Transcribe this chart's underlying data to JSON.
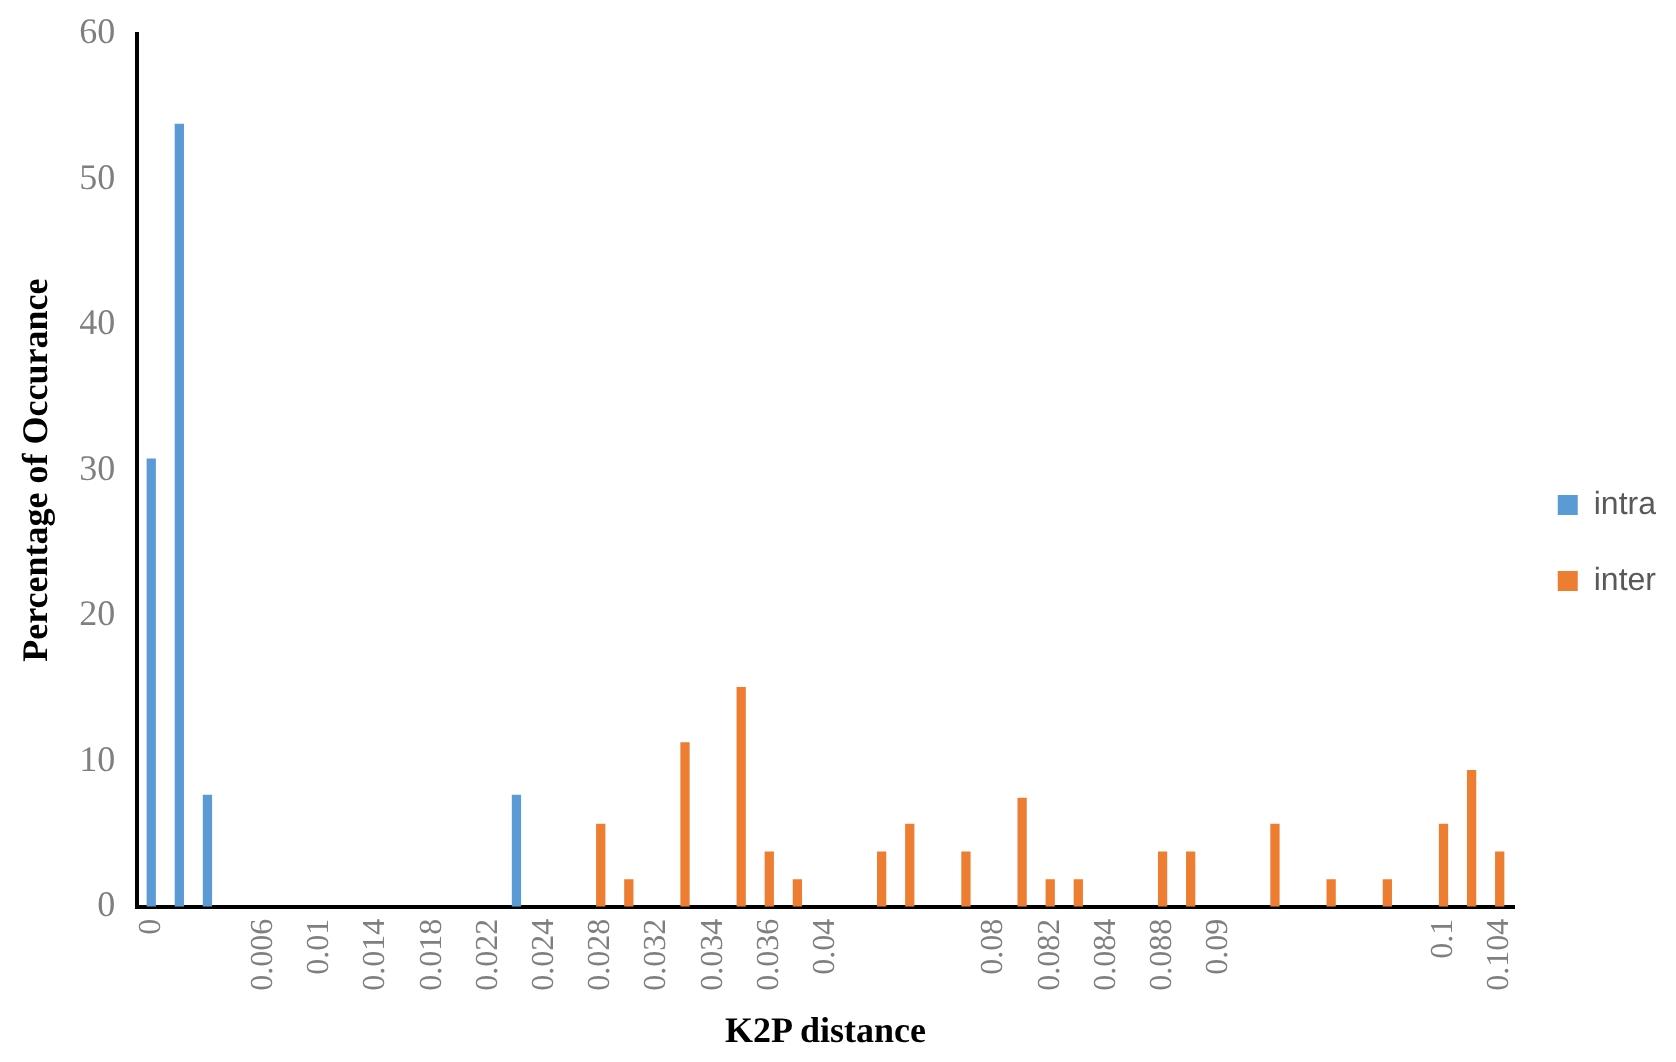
{
  "chart_data": {
    "type": "bar",
    "xlabel": "K2P distance",
    "ylabel": "Percentage of Occurance",
    "categories": [
      "0",
      null,
      null,
      null,
      "0.006",
      null,
      "0.01",
      null,
      "0.014",
      null,
      "0.018",
      null,
      "0.022",
      null,
      "0.024",
      null,
      "0.028",
      null,
      "0.032",
      null,
      "0.034",
      null,
      "0.036",
      null,
      "0.04",
      null,
      null,
      null,
      null,
      null,
      "0.08",
      null,
      "0.082",
      null,
      "0.084",
      null,
      "0.088",
      null,
      "0.09",
      null,
      null,
      null,
      null,
      null,
      null,
      null,
      "0.1",
      null,
      "0.104"
    ],
    "series": [
      {
        "name": "intra",
        "color": "#5b9bd5",
        "values": [
          30.8,
          53.8,
          7.7,
          null,
          null,
          null,
          null,
          null,
          null,
          null,
          null,
          null,
          null,
          7.7,
          null,
          null,
          null,
          null,
          null,
          null,
          null,
          null,
          null,
          null,
          null,
          null,
          null,
          null,
          null,
          null,
          null,
          null,
          null,
          null,
          null,
          null,
          null,
          null,
          null,
          null,
          null,
          null,
          null,
          null,
          null,
          null,
          null,
          null,
          null
        ]
      },
      {
        "name": "inter",
        "color": "#ed7d31",
        "values": [
          null,
          null,
          null,
          null,
          null,
          null,
          null,
          null,
          null,
          null,
          null,
          null,
          null,
          null,
          null,
          null,
          5.7,
          1.9,
          null,
          11.3,
          null,
          15.1,
          3.8,
          1.9,
          null,
          null,
          3.8,
          5.7,
          null,
          3.8,
          null,
          7.5,
          1.9,
          1.9,
          null,
          null,
          3.8,
          3.8,
          null,
          null,
          5.7,
          null,
          1.9,
          null,
          1.9,
          null,
          5.7,
          9.4,
          3.8
        ]
      }
    ],
    "ylim": [
      0,
      60
    ],
    "yticks": [
      0,
      10,
      20,
      30,
      40,
      50,
      60
    ],
    "grid": false,
    "legend": "right"
  }
}
